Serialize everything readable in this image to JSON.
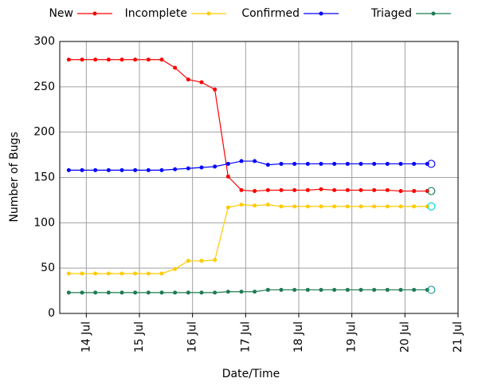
{
  "chart_data": {
    "type": "line",
    "xlabel": "Date/Time",
    "ylabel": "Number of Bugs",
    "x": [
      13.67,
      13.92,
      14.17,
      14.42,
      14.67,
      14.92,
      15.17,
      15.42,
      15.67,
      15.92,
      16.17,
      16.42,
      16.67,
      16.92,
      17.17,
      17.42,
      17.67,
      17.92,
      18.17,
      18.42,
      18.67,
      18.92,
      19.17,
      19.42,
      19.67,
      19.92,
      20.17,
      20.42
    ],
    "xlim": [
      13.5,
      21
    ],
    "xticks": [
      {
        "value": 14,
        "label": "14 Jul"
      },
      {
        "value": 15,
        "label": "15 Jul"
      },
      {
        "value": 16,
        "label": "16 Jul"
      },
      {
        "value": 17,
        "label": "17 Jul"
      },
      {
        "value": 18,
        "label": "18 Jul"
      },
      {
        "value": 19,
        "label": "19 Jul"
      },
      {
        "value": 20,
        "label": "20 Jul"
      },
      {
        "value": 21,
        "label": "21 Jul"
      }
    ],
    "ylim": [
      0,
      300
    ],
    "yticks": [
      0,
      50,
      100,
      150,
      200,
      250,
      300
    ],
    "grid": true,
    "legend": "top",
    "series": [
      {
        "name": "New",
        "color": "#ff0000",
        "end_marker_color": "#1e7b52",
        "values": [
          280,
          280,
          280,
          280,
          280,
          280,
          280,
          280,
          271,
          258,
          255,
          247,
          151,
          136,
          135,
          136,
          136,
          136,
          136,
          137,
          136,
          136,
          136,
          136,
          136,
          135,
          135,
          135
        ]
      },
      {
        "name": "Incomplete",
        "color": "#ffcc00",
        "end_marker_color": "#00e0e0",
        "values": [
          44,
          44,
          44,
          44,
          44,
          44,
          44,
          44,
          49,
          58,
          58,
          59,
          117,
          120,
          119,
          120,
          118,
          118,
          118,
          118,
          118,
          118,
          118,
          118,
          118,
          118,
          118,
          118
        ]
      },
      {
        "name": "Confirmed",
        "color": "#0000ff",
        "end_marker_color": "#0000ff",
        "values": [
          158,
          158,
          158,
          158,
          158,
          158,
          158,
          158,
          159,
          160,
          161,
          162,
          165,
          168,
          168,
          164,
          165,
          165,
          165,
          165,
          165,
          165,
          165,
          165,
          165,
          165,
          165,
          165
        ]
      },
      {
        "name": "Triaged",
        "color": "#1e7b52",
        "end_marker_color": "#1e9b92",
        "values": [
          23,
          23,
          23,
          23,
          23,
          23,
          23,
          23,
          23,
          23,
          23,
          23,
          24,
          24,
          24,
          26,
          26,
          26,
          26,
          26,
          26,
          26,
          26,
          26,
          26,
          26,
          26,
          26
        ]
      }
    ]
  }
}
